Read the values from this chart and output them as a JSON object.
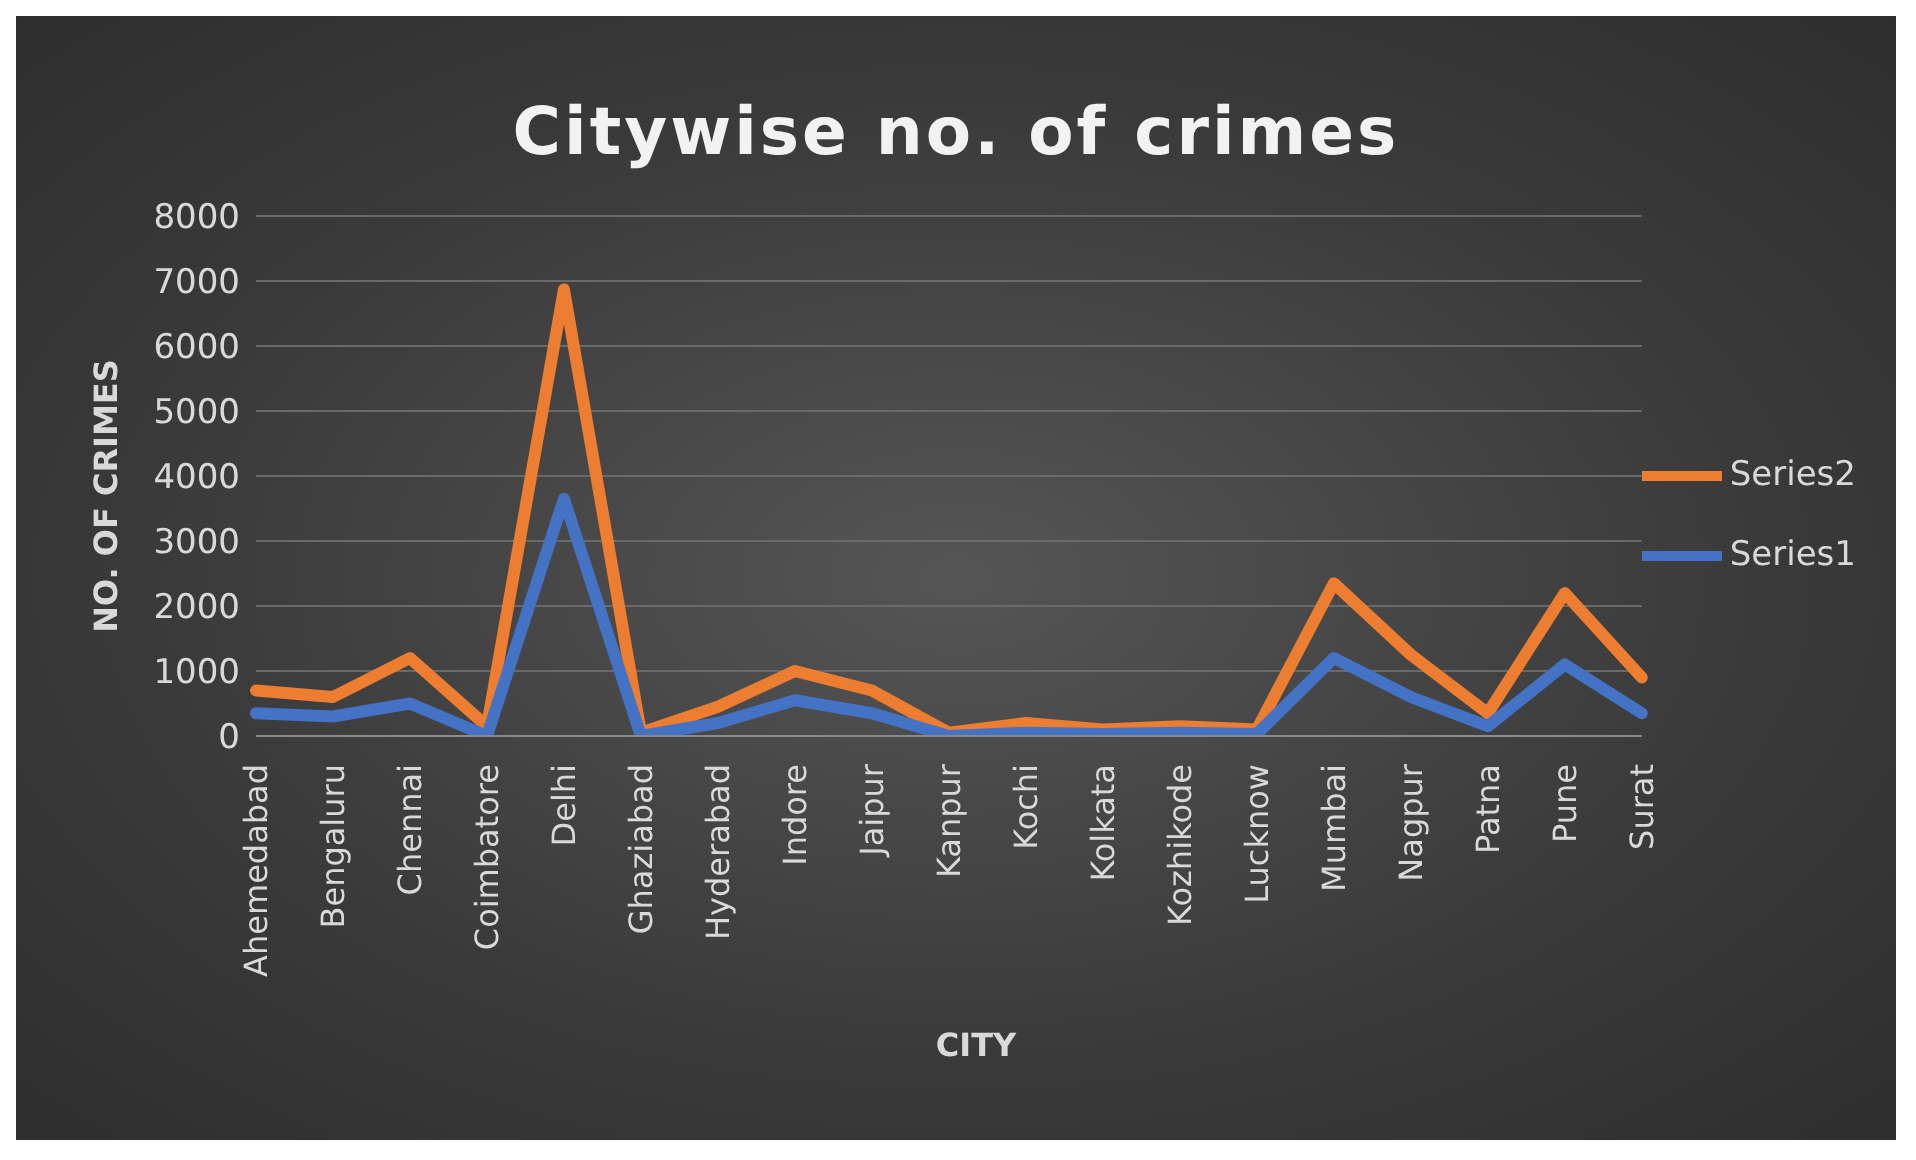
{
  "chart_data": {
    "type": "line",
    "title": "Citywise no. of crimes",
    "xlabel": "CITY",
    "ylabel": "NO. OF CRIMES",
    "categories": [
      "Ahemedabad",
      "Bengaluru",
      "Chennai",
      "Coimbatore",
      "Delhi",
      "Ghaziabad",
      "Hyderabad",
      "Indore",
      "Jaipur",
      "Kanpur",
      "Kochi",
      "Kolkata",
      "Kozhikode",
      "Lucknow",
      "Mumbai",
      "Nagpur",
      "Patna",
      "Pune",
      "Surat"
    ],
    "series": [
      {
        "name": "Series2",
        "color": "#ed7d31",
        "values": [
          700,
          600,
          1200,
          150,
          6870,
          50,
          450,
          1000,
          700,
          50,
          200,
          100,
          150,
          100,
          2350,
          1250,
          350,
          2200,
          900
        ]
      },
      {
        "name": "Series1",
        "color": "#4472c4",
        "values": [
          350,
          300,
          500,
          0,
          3650,
          0,
          200,
          550,
          350,
          0,
          50,
          30,
          50,
          30,
          1200,
          600,
          150,
          1100,
          350
        ]
      }
    ],
    "ylim": [
      0,
      8000
    ],
    "yticks": [
      0,
      1000,
      2000,
      3000,
      4000,
      5000,
      6000,
      7000,
      8000
    ],
    "grid": "y",
    "legend": "right",
    "marker": "none",
    "line_style": "solid"
  }
}
